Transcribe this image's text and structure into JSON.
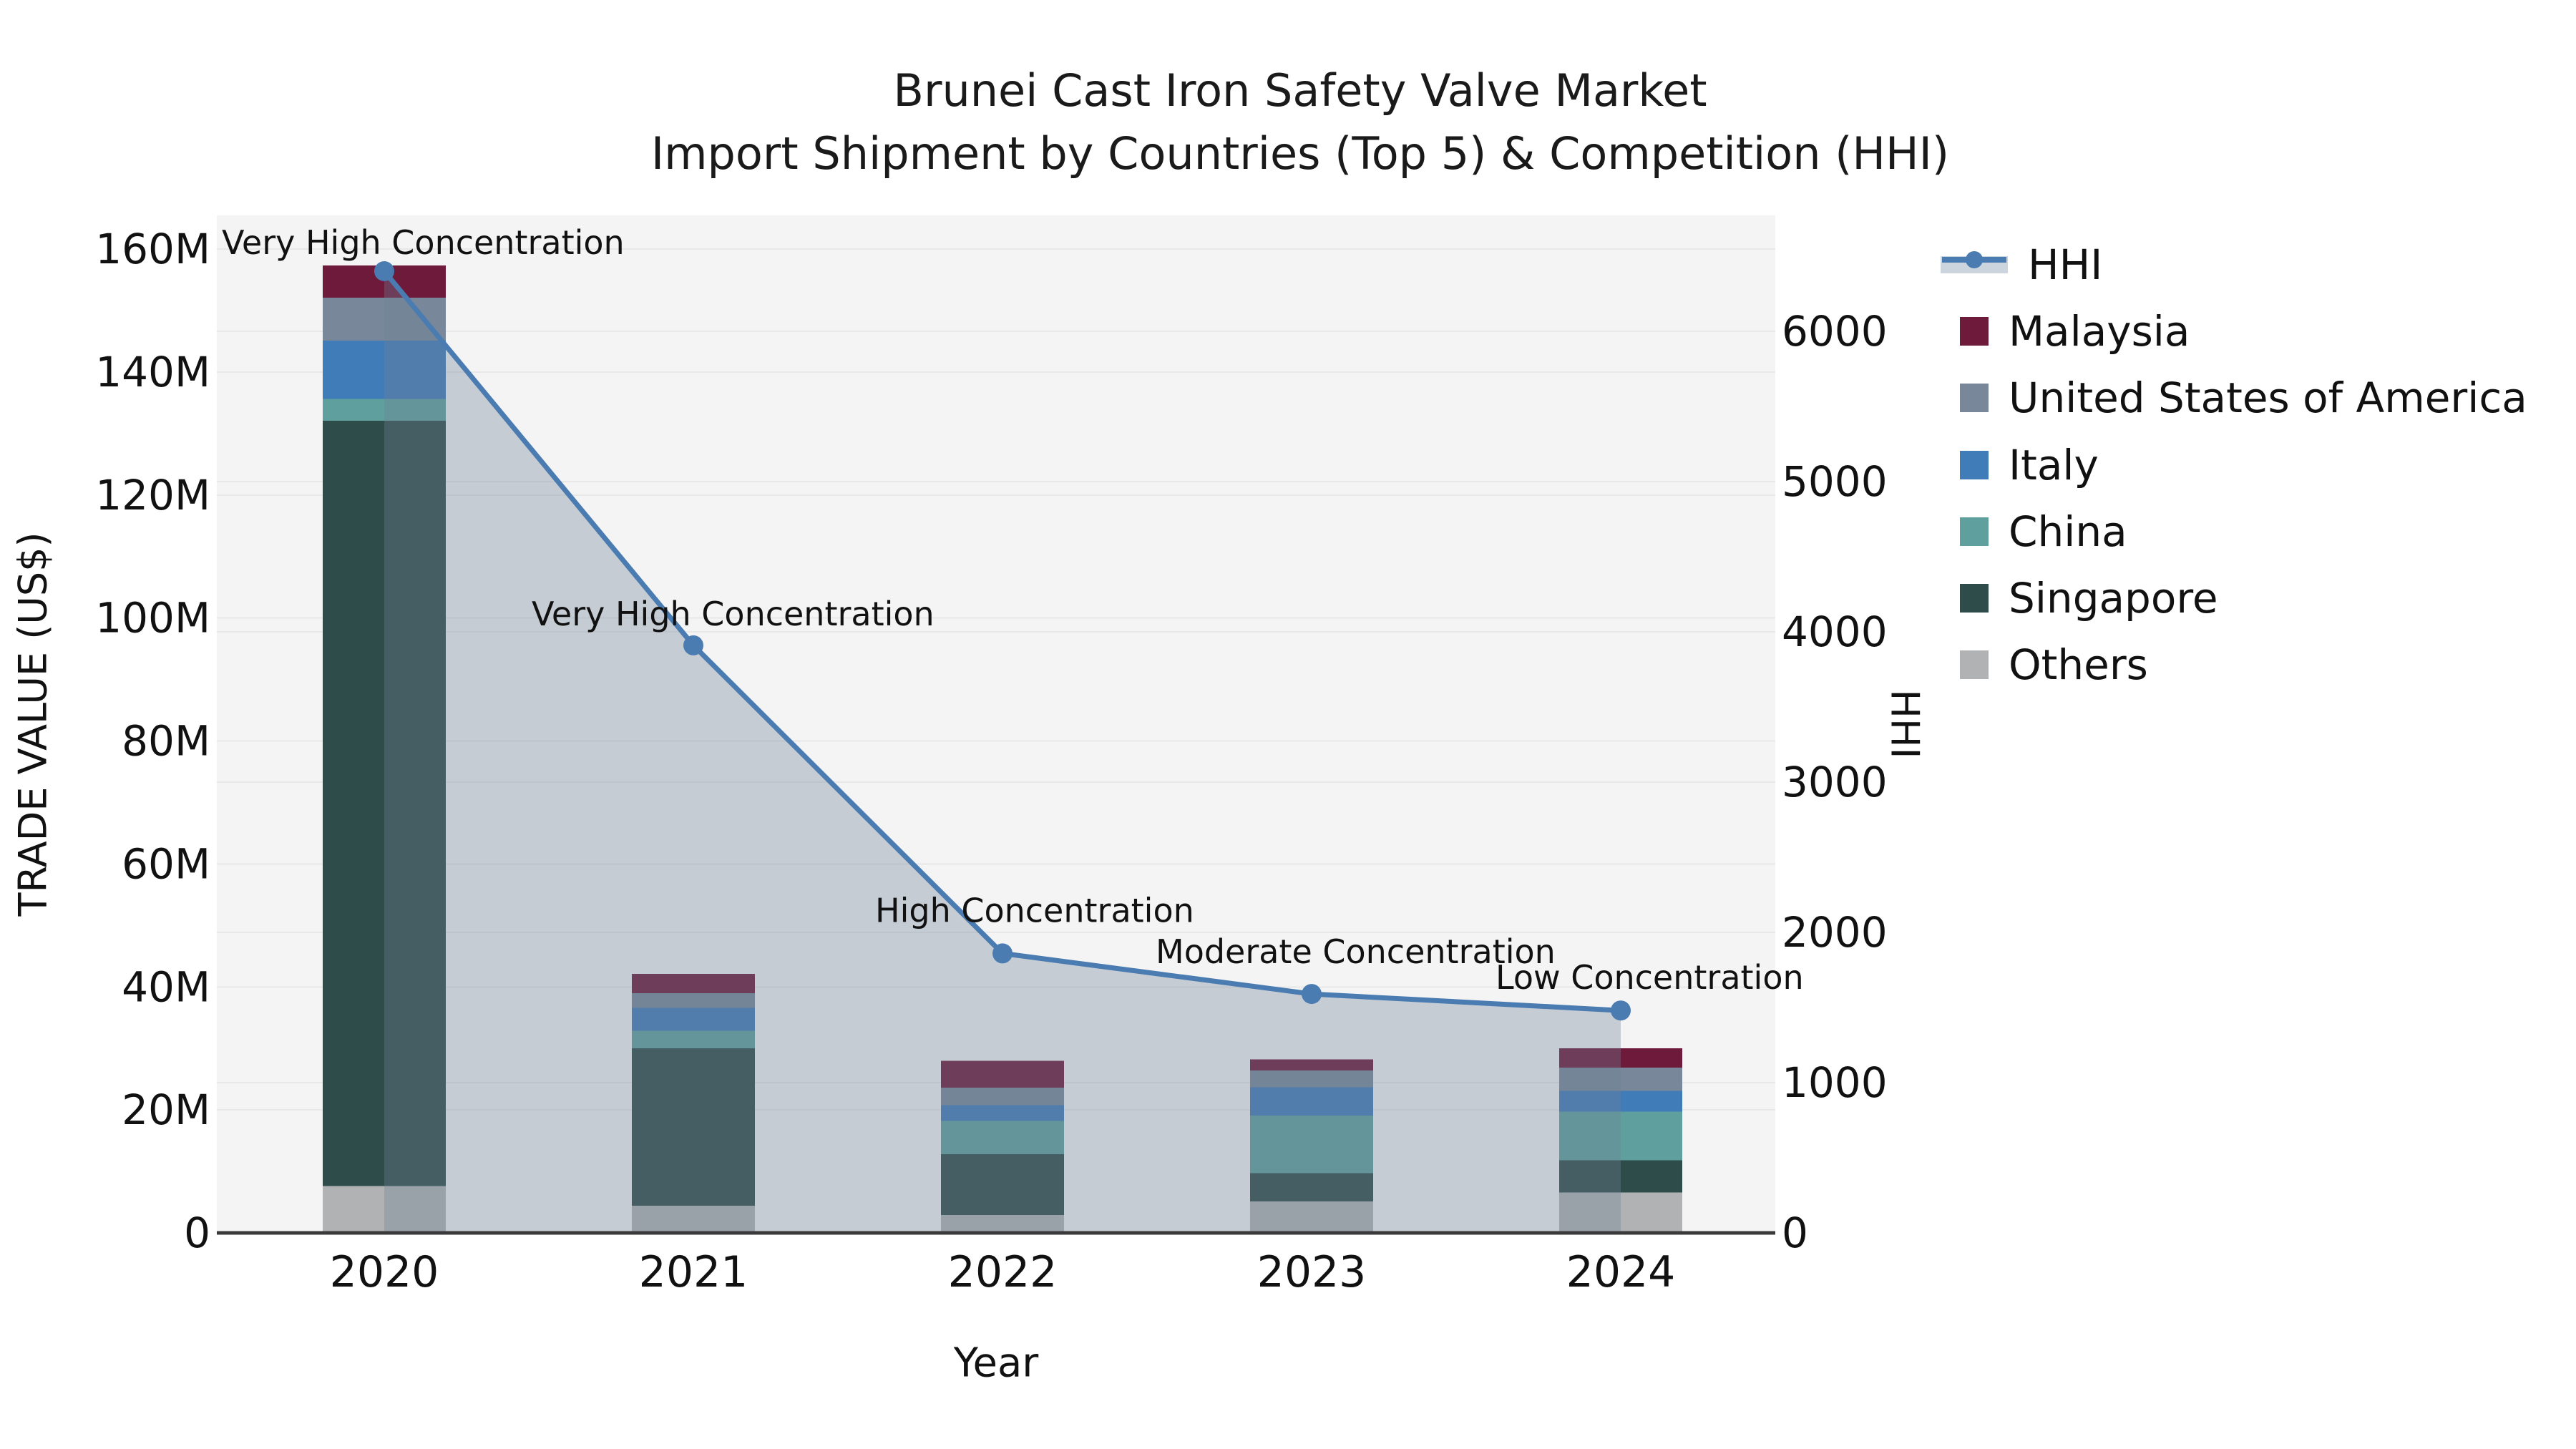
{
  "title": {
    "line1": "Brunei Cast Iron Safety Valve Market",
    "line2": "Import Shipment by Countries (Top 5) & Competition (HHI)"
  },
  "axes": {
    "left": {
      "label": "TRADE VALUE (US$)",
      "ticks": [
        {
          "v": 0,
          "label": "0"
        },
        {
          "v": 20,
          "label": "20M"
        },
        {
          "v": 40,
          "label": "40M"
        },
        {
          "v": 60,
          "label": "60M"
        },
        {
          "v": 80,
          "label": "80M"
        },
        {
          "v": 100,
          "label": "100M"
        },
        {
          "v": 120,
          "label": "120M"
        },
        {
          "v": 140,
          "label": "140M"
        },
        {
          "v": 160,
          "label": "160M"
        }
      ]
    },
    "right": {
      "label": "HHI",
      "ticks": [
        {
          "v": 0,
          "label": "0"
        },
        {
          "v": 1000,
          "label": "1000"
        },
        {
          "v": 2000,
          "label": "2000"
        },
        {
          "v": 3000,
          "label": "3000"
        },
        {
          "v": 4000,
          "label": "4000"
        },
        {
          "v": 5000,
          "label": "5000"
        },
        {
          "v": 6000,
          "label": "6000"
        }
      ]
    },
    "x": {
      "label": "Year",
      "ticks": [
        "2020",
        "2021",
        "2022",
        "2023",
        "2024"
      ]
    }
  },
  "legend": {
    "items": [
      {
        "label": "HHI",
        "type": "line",
        "color": "#4a7cb2",
        "band": "#ccd4de"
      },
      {
        "label": "Malaysia",
        "type": "patch",
        "color": "#6d1a3b"
      },
      {
        "label": "United States of America",
        "type": "patch",
        "color": "#78879a"
      },
      {
        "label": "Italy",
        "type": "patch",
        "color": "#3f7cb8"
      },
      {
        "label": "China",
        "type": "patch",
        "color": "#5fa09e"
      },
      {
        "label": "Singapore",
        "type": "patch",
        "color": "#2e4c49"
      },
      {
        "label": "Others",
        "type": "patch",
        "color": "#b0b2b4"
      }
    ]
  },
  "chart_data": {
    "type": "bar+line",
    "title": "Brunei Cast Iron Safety Valve Market — Import Shipment by Countries (Top 5) & Competition (HHI)",
    "categories": [
      2020,
      2021,
      2022,
      2023,
      2024
    ],
    "bar_value_unit": "million US$",
    "series": [
      {
        "name": "Others",
        "color": "#b0b2b4",
        "values": [
          7.6,
          4.4,
          2.9,
          5.1,
          6.6
        ]
      },
      {
        "name": "Singapore",
        "color": "#2e4c49",
        "values": [
          124.5,
          25.6,
          9.9,
          4.6,
          5.2
        ]
      },
      {
        "name": "China",
        "color": "#5fa09e",
        "values": [
          3.5,
          2.9,
          5.4,
          9.4,
          7.9
        ]
      },
      {
        "name": "Italy",
        "color": "#3f7cb8",
        "values": [
          9.5,
          3.7,
          2.6,
          4.6,
          3.4
        ]
      },
      {
        "name": "United States of America",
        "color": "#78879a",
        "values": [
          7.0,
          2.4,
          2.8,
          2.7,
          3.8
        ]
      },
      {
        "name": "Malaysia",
        "color": "#6d1a3b",
        "values": [
          5.2,
          3.1,
          4.4,
          1.8,
          3.1
        ]
      }
    ],
    "stack_order": "bottom-to-top",
    "bar_totals": [
      157.3,
      42.1,
      28.0,
      28.2,
      30.0
    ],
    "line": {
      "name": "HHI",
      "color": "#4a7cb2",
      "fill": "rgba(112,128,150,0.35)",
      "values": [
        6400,
        3910,
        1860,
        1590,
        1480
      ]
    },
    "annotations": [
      {
        "text": "Very High Concentration",
        "year": 2020
      },
      {
        "text": "Very High Concentration",
        "year": 2021
      },
      {
        "text": "High Concentration",
        "year": 2022
      },
      {
        "text": "Moderate Concentration",
        "year": 2023
      },
      {
        "text": "Low Concentration",
        "year": 2024
      }
    ],
    "xlabel": "Year",
    "ylabel_left": "TRADE VALUE (US$)",
    "ylabel_right": "HHI",
    "ylim_left": [
      0,
      165.4
    ],
    "ylim_right": [
      0,
      6770
    ],
    "grid": true,
    "plot_bg": "#f4f4f4",
    "grid_color": "#e8e8e8",
    "spine_color": "#3a3a3a",
    "legend_position": "right"
  }
}
